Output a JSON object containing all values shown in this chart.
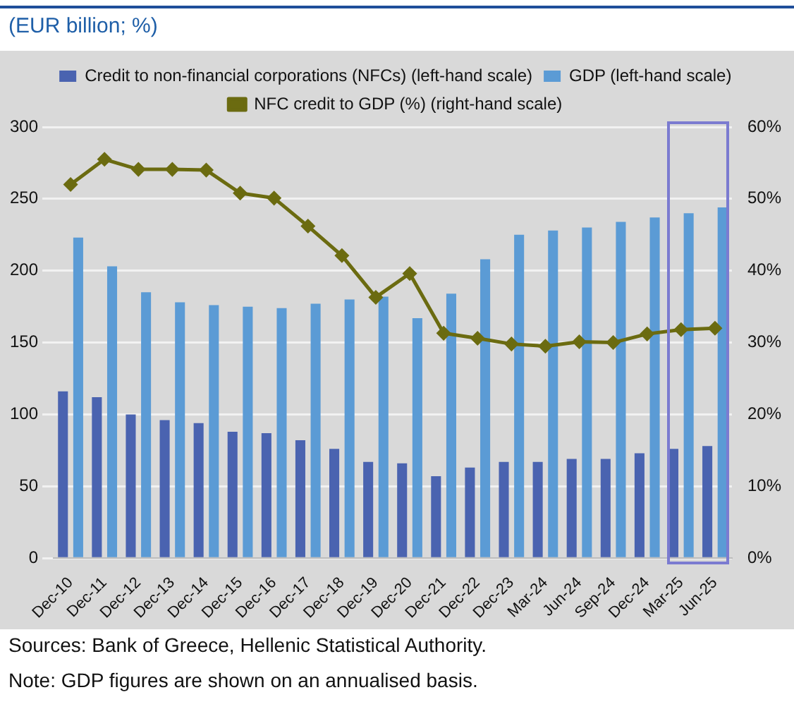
{
  "chart_data": {
    "type": "bar",
    "title": "(EUR billion; %)",
    "categories": [
      "Dec-10",
      "Dec-11",
      "Dec-12",
      "Dec-13",
      "Dec-14",
      "Dec-15",
      "Dec-16",
      "Dec-17",
      "Dec-18",
      "Dec-19",
      "Dec-20",
      "Dec-21",
      "Dec-22",
      "Dec-23",
      "Mar-24",
      "Jun-24",
      "Sep-24",
      "Dec-24",
      "Mar-25",
      "Jun-25"
    ],
    "series": [
      {
        "name": "Credit to non-financial corporations (NFCs) (left-hand scale)",
        "color": "#4a63b0",
        "values": [
          116,
          112,
          100,
          96,
          94,
          88,
          87,
          82,
          76,
          67,
          66,
          57,
          63,
          67,
          67,
          69,
          69,
          73,
          76,
          78
        ]
      },
      {
        "name": "GDP (left-hand scale)",
        "color": "#5b9bd5",
        "values": [
          223,
          203,
          185,
          178,
          176,
          175,
          174,
          177,
          180,
          182,
          167,
          184,
          208,
          225,
          228,
          230,
          234,
          237,
          240,
          244
        ]
      },
      {
        "name": "NFC credit to GDP (%) (right-hand scale)",
        "type": "line",
        "axis": "y2",
        "color": "#6b6b10",
        "values": [
          52,
          55.5,
          54.1,
          54.1,
          54,
          50.8,
          50.1,
          46.2,
          42.1,
          36.3,
          39.6,
          31.3,
          30.6,
          29.8,
          29.5,
          30.1,
          30,
          31.2,
          31.8,
          32
        ]
      }
    ],
    "ylim": [
      0,
      300
    ],
    "yticks": [
      0,
      50,
      100,
      150,
      200,
      250,
      300
    ],
    "y2lim": [
      0,
      60
    ],
    "y2ticks": [
      {
        "value": 0,
        "label": "0%"
      },
      {
        "value": 10,
        "label": "10%"
      },
      {
        "value": 20,
        "label": "20%"
      },
      {
        "value": 30,
        "label": "30%"
      },
      {
        "value": 40,
        "label": "40%"
      },
      {
        "value": 50,
        "label": "50%"
      },
      {
        "value": 60,
        "label": "60%"
      }
    ],
    "grid": "y",
    "legend": "top",
    "marker": "diamond",
    "line_style": "solid",
    "annotations": [
      "Sources: Bank of Greece, Hellenic Statistical Authority.",
      "Note: GDP figures are shown on an annualised basis."
    ]
  }
}
